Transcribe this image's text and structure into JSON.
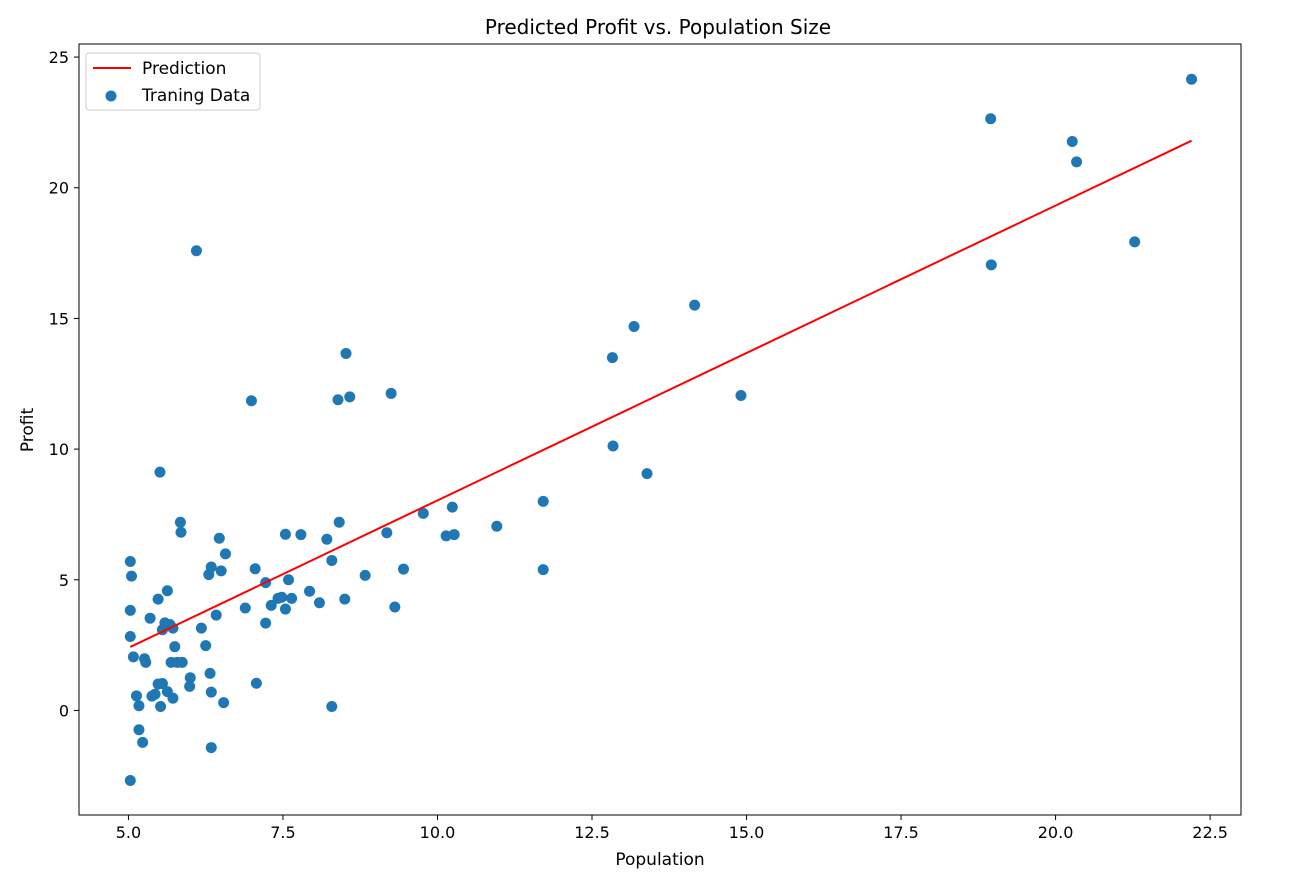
{
  "chart_data": {
    "type": "scatter",
    "title": "Predicted Profit vs. Population Size",
    "xlabel": "Population",
    "ylabel": "Profit",
    "xlim": [
      4.2,
      23.0
    ],
    "ylim": [
      -4.0,
      25.5
    ],
    "xticks": [
      5.0,
      7.5,
      10.0,
      12.5,
      15.0,
      17.5,
      20.0,
      22.5
    ],
    "xtick_labels": [
      "5.0",
      "7.5",
      "10.0",
      "12.5",
      "15.0",
      "17.5",
      "20.0",
      "22.5"
    ],
    "yticks": [
      0,
      5,
      10,
      15,
      20,
      25
    ],
    "ytick_labels": [
      "0",
      "5",
      "10",
      "15",
      "20",
      "25"
    ],
    "grid": false,
    "legend_position": "top-left",
    "series": [
      {
        "name": "Prediction",
        "kind": "line",
        "color": "#ff0000",
        "x": [
          5.03,
          22.2
        ],
        "y": [
          2.43,
          21.8
        ]
      },
      {
        "name": "Traning Data",
        "kind": "scatter",
        "color": "#1f77b4",
        "points": [
          [
            5.03,
            -2.68
          ],
          [
            5.03,
            5.7
          ],
          [
            5.05,
            5.14
          ],
          [
            5.03,
            3.83
          ],
          [
            5.03,
            2.83
          ],
          [
            5.08,
            2.05
          ],
          [
            5.13,
            0.56
          ],
          [
            5.17,
            0.18
          ],
          [
            5.17,
            -0.74
          ],
          [
            5.23,
            -1.22
          ],
          [
            5.26,
            1.98
          ],
          [
            5.28,
            1.84
          ],
          [
            5.35,
            3.53
          ],
          [
            5.38,
            0.55
          ],
          [
            5.43,
            0.62
          ],
          [
            5.48,
            1.01
          ],
          [
            5.48,
            4.26
          ],
          [
            5.51,
            9.12
          ],
          [
            5.52,
            0.15
          ],
          [
            5.55,
            1.03
          ],
          [
            5.55,
            3.09
          ],
          [
            5.59,
            3.35
          ],
          [
            5.63,
            4.58
          ],
          [
            5.63,
            0.72
          ],
          [
            5.67,
            3.29
          ],
          [
            5.69,
            1.84
          ],
          [
            5.72,
            0.47
          ],
          [
            5.72,
            3.15
          ],
          [
            5.75,
            2.44
          ],
          [
            5.79,
            1.84
          ],
          [
            5.84,
            7.2
          ],
          [
            5.85,
            6.82
          ],
          [
            5.87,
            1.84
          ],
          [
            5.99,
            0.92
          ],
          [
            6.0,
            1.25
          ],
          [
            6.1,
            17.59
          ],
          [
            6.18,
            3.15
          ],
          [
            6.25,
            2.48
          ],
          [
            6.3,
            5.2
          ],
          [
            6.32,
            1.42
          ],
          [
            6.34,
            5.49
          ],
          [
            6.34,
            0.7
          ],
          [
            6.34,
            -1.42
          ],
          [
            6.42,
            3.65
          ],
          [
            6.47,
            6.59
          ],
          [
            6.5,
            5.34
          ],
          [
            6.54,
            0.3
          ],
          [
            6.57,
            5.99
          ],
          [
            6.89,
            3.92
          ],
          [
            6.99,
            11.85
          ],
          [
            7.05,
            5.42
          ],
          [
            7.07,
            1.04
          ],
          [
            7.22,
            4.89
          ],
          [
            7.22,
            3.34
          ],
          [
            7.31,
            4.02
          ],
          [
            7.42,
            4.29
          ],
          [
            7.48,
            4.33
          ],
          [
            7.54,
            3.88
          ],
          [
            7.54,
            6.74
          ],
          [
            7.59,
            5.0
          ],
          [
            7.64,
            4.29
          ],
          [
            7.79,
            6.73
          ],
          [
            7.93,
            4.56
          ],
          [
            8.09,
            4.12
          ],
          [
            8.21,
            6.55
          ],
          [
            8.29,
            5.74
          ],
          [
            8.29,
            0.15
          ],
          [
            8.39,
            11.89
          ],
          [
            8.41,
            7.2
          ],
          [
            8.5,
            4.26
          ],
          [
            8.52,
            13.66
          ],
          [
            8.58,
            12.0
          ],
          [
            8.83,
            5.17
          ],
          [
            9.18,
            6.8
          ],
          [
            9.25,
            12.13
          ],
          [
            9.31,
            3.96
          ],
          [
            9.45,
            5.41
          ],
          [
            9.77,
            7.54
          ],
          [
            10.14,
            6.68
          ],
          [
            10.24,
            7.78
          ],
          [
            10.27,
            6.73
          ],
          [
            10.96,
            7.05
          ],
          [
            11.71,
            5.39
          ],
          [
            11.71,
            8.0
          ],
          [
            12.83,
            13.5
          ],
          [
            12.84,
            10.12
          ],
          [
            13.18,
            14.69
          ],
          [
            13.39,
            9.06
          ],
          [
            14.16,
            15.51
          ],
          [
            14.91,
            12.05
          ],
          [
            18.95,
            22.64
          ],
          [
            18.96,
            17.05
          ],
          [
            20.27,
            21.77
          ],
          [
            20.34,
            20.99
          ],
          [
            21.28,
            17.93
          ],
          [
            22.2,
            24.15
          ]
        ]
      }
    ]
  }
}
